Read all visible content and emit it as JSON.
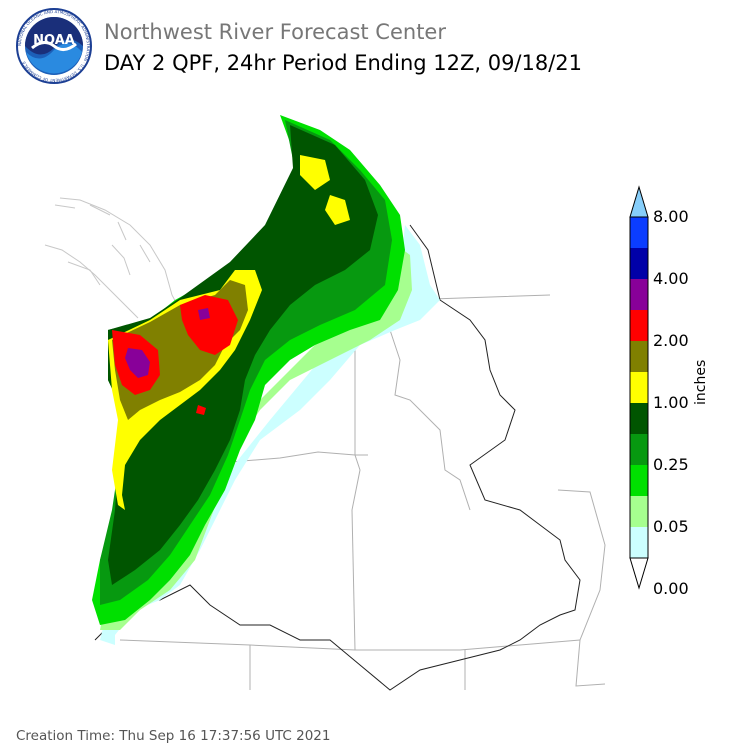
{
  "header": {
    "organization": "Northwest River Forecast Center",
    "product_title": "DAY 2 QPF, 24hr Period Ending 12Z, 09/18/21"
  },
  "logo": {
    "text": "NOAA",
    "ring_text": "NATIONAL OCEANIC AND ATMOSPHERIC ADMINISTRATION · U.S. DEPARTMENT OF COMMERCE"
  },
  "legend": {
    "unit": "inches",
    "labels": [
      "8.00",
      "4.00",
      "2.00",
      "1.00",
      "0.25",
      "0.05",
      "0.00"
    ],
    "colors": [
      "#87cefa",
      "#0b3dff",
      "#0000a8",
      "#880099",
      "#ff0000",
      "#808000",
      "#ffff00",
      "#005500",
      "#079910",
      "#00e000",
      "#a6ff8f",
      "#ccffff",
      "#ffffff"
    ]
  },
  "footer": {
    "creation_time": "Creation Time: Thu Sep 16 17:37:56 UTC 2021"
  }
}
